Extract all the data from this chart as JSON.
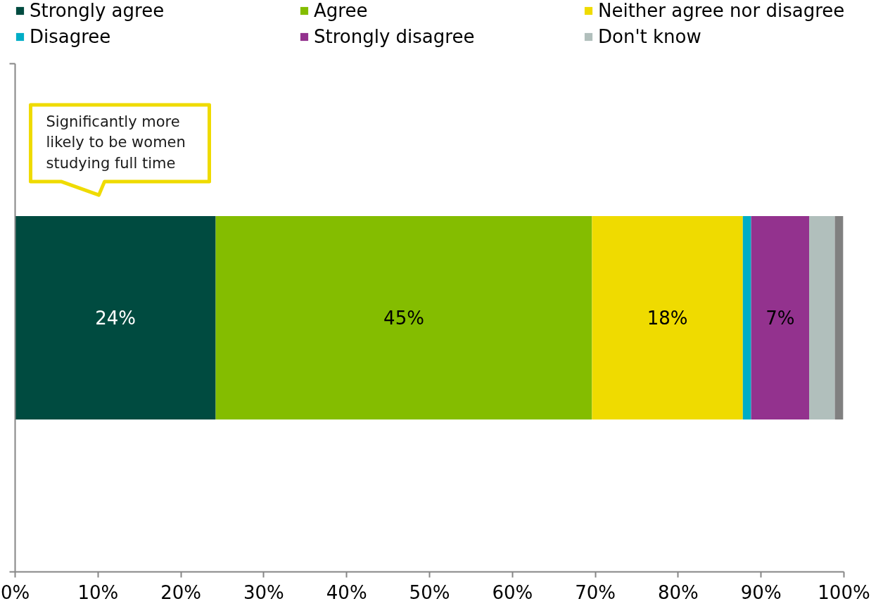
{
  "chart_data": {
    "type": "bar",
    "orientation": "horizontal",
    "stacked": true,
    "categories": [
      null
    ],
    "series": [
      {
        "name": "Strongly agree",
        "color": "#004b40",
        "values": [
          24.2
        ],
        "value_labels": [
          "24%"
        ]
      },
      {
        "name": "Agree",
        "color": "#84bd00",
        "values": [
          45.4
        ],
        "value_labels": [
          "45%"
        ]
      },
      {
        "name": "Neither agree nor disagree",
        "color": "#efdb00",
        "values": [
          18.2
        ],
        "value_labels": [
          "18%"
        ]
      },
      {
        "name": "Disagree",
        "color": "#00adc6",
        "values": [
          1.0
        ],
        "value_labels": [
          null
        ]
      },
      {
        "name": "Strongly disagree",
        "color": "#93328e",
        "values": [
          7.0
        ],
        "value_labels": [
          "7%"
        ]
      },
      {
        "name": "Don't know",
        "color": "#b1bfbc",
        "values": [
          3.1
        ],
        "value_labels": [
          null
        ]
      },
      {
        "color": "#808080",
        "values": [
          1.0
        ],
        "value_labels": [
          null
        ]
      }
    ],
    "xlim": [
      0,
      100
    ],
    "xticks": [
      {
        "value": 0,
        "label": "0%"
      },
      {
        "value": 10,
        "label": "10%"
      },
      {
        "value": 20,
        "label": "20%"
      },
      {
        "value": 30,
        "label": "30%"
      },
      {
        "value": 40,
        "label": "40%"
      },
      {
        "value": 50,
        "label": "50%"
      },
      {
        "value": 60,
        "label": "60%"
      },
      {
        "value": 70,
        "label": "70%"
      },
      {
        "value": 80,
        "label": "80%"
      },
      {
        "value": 90,
        "label": "90%"
      },
      {
        "value": 100,
        "label": "100%"
      }
    ],
    "tick_labels": "x",
    "legend": "top",
    "annotations": [
      "Significantly more likely to be women studying full time"
    ]
  }
}
